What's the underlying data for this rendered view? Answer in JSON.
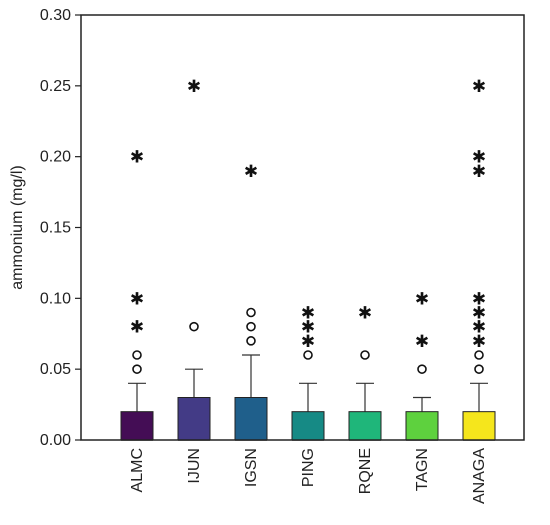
{
  "chart_data": {
    "type": "boxplot",
    "title": "",
    "xlabel": "",
    "ylabel": "ammonium (mg/l)",
    "ylim": [
      0,
      0.3
    ],
    "yticks": [
      "0.00",
      "0.05",
      "0.10",
      "0.15",
      "0.20",
      "0.25",
      "0.30"
    ],
    "grid": false,
    "categories": [
      "ALMC",
      "IJUN",
      "IGSN",
      "PING",
      "RQNE",
      "TAGN",
      "ANAGA"
    ],
    "colors": [
      "#440d55",
      "#433b86",
      "#1f5f8b",
      "#168a85",
      "#1fb67a",
      "#5ed13e",
      "#f5e61c"
    ],
    "series": [
      {
        "category": "ALMC",
        "min": 0.0,
        "q1": 0.0,
        "median": 0.0,
        "q3": 0.02,
        "whisker_high": 0.04,
        "outliers": [
          0.05,
          0.06
        ],
        "extremes": [
          0.08,
          0.1,
          0.2
        ]
      },
      {
        "category": "IJUN",
        "min": 0.0,
        "q1": 0.0,
        "median": 0.0,
        "q3": 0.03,
        "whisker_high": 0.05,
        "outliers": [
          0.08
        ],
        "extremes": [
          0.25
        ]
      },
      {
        "category": "IGSN",
        "min": 0.0,
        "q1": 0.0,
        "median": 0.0,
        "q3": 0.03,
        "whisker_high": 0.06,
        "outliers": [
          0.07,
          0.08,
          0.09
        ],
        "extremes": [
          0.19
        ]
      },
      {
        "category": "PING",
        "min": 0.0,
        "q1": 0.0,
        "median": 0.0,
        "q3": 0.02,
        "whisker_high": 0.04,
        "outliers": [
          0.06
        ],
        "extremes": [
          0.07,
          0.08,
          0.09
        ]
      },
      {
        "category": "RQNE",
        "min": 0.0,
        "q1": 0.0,
        "median": 0.0,
        "q3": 0.02,
        "whisker_high": 0.04,
        "outliers": [
          0.06
        ],
        "extremes": [
          0.09
        ]
      },
      {
        "category": "TAGN",
        "min": 0.0,
        "q1": 0.0,
        "median": 0.0,
        "q3": 0.02,
        "whisker_high": 0.03,
        "outliers": [
          0.05
        ],
        "extremes": [
          0.07,
          0.1
        ]
      },
      {
        "category": "ANAGA",
        "min": 0.0,
        "q1": 0.0,
        "median": 0.0,
        "q3": 0.02,
        "whisker_high": 0.04,
        "outliers": [
          0.05,
          0.06
        ],
        "extremes": [
          0.07,
          0.08,
          0.09,
          0.1,
          0.19,
          0.2,
          0.25
        ]
      }
    ]
  }
}
